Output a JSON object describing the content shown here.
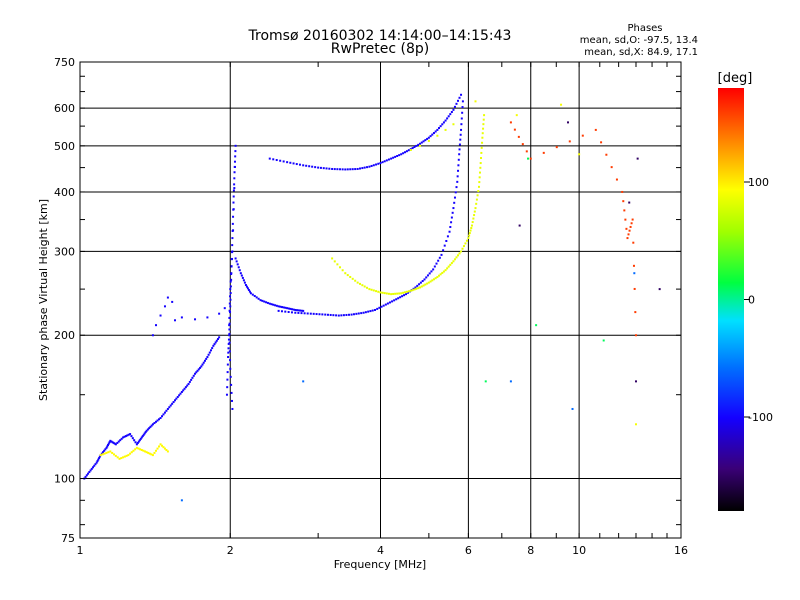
{
  "chart_data": {
    "type": "scatter",
    "title": "Tromsø 20160302 14:14:00–14:15:43",
    "subtitle": "RwPretec (8p)",
    "xlabel": "Frequency [MHz]",
    "ylabel": "Stationary phase Virtual Height [km]",
    "x_scale": "log",
    "y_scale": "log",
    "xlim": [
      1,
      16
    ],
    "ylim": [
      75,
      750
    ],
    "x_ticks": [
      1,
      2,
      4,
      6,
      8,
      10,
      16
    ],
    "y_ticks": [
      75,
      100,
      200,
      300,
      400,
      500,
      600,
      750
    ],
    "grid": true,
    "colorbar": {
      "label": "[deg]",
      "range": [
        -180,
        180
      ],
      "ticks": [
        -100,
        0,
        100
      ]
    },
    "stats": {
      "heading": "Phases",
      "o_line": "mean, sd,O: -97.5, 13.4",
      "x_line": "mean, sd,X:  84.9, 17.1"
    },
    "traces": [
      {
        "phase": -100,
        "points": [
          [
            1.02,
            100
          ],
          [
            1.05,
            104
          ],
          [
            1.08,
            108
          ],
          [
            1.1,
            112
          ],
          [
            1.13,
            116
          ],
          [
            1.15,
            120
          ],
          [
            1.18,
            118
          ],
          [
            1.22,
            122
          ],
          [
            1.26,
            124
          ],
          [
            1.3,
            118
          ],
          [
            1.33,
            122
          ],
          [
            1.36,
            126
          ],
          [
            1.4,
            130
          ],
          [
            1.45,
            134
          ],
          [
            1.5,
            140
          ],
          [
            1.55,
            146
          ],
          [
            1.6,
            152
          ],
          [
            1.65,
            158
          ],
          [
            1.7,
            166
          ],
          [
            1.75,
            172
          ],
          [
            1.8,
            180
          ],
          [
            1.85,
            190
          ],
          [
            1.9,
            198
          ]
        ]
      },
      {
        "phase": 95,
        "points": [
          [
            1.1,
            112
          ],
          [
            1.15,
            114
          ],
          [
            1.2,
            110
          ],
          [
            1.25,
            112
          ],
          [
            1.3,
            116
          ],
          [
            1.35,
            114
          ],
          [
            1.4,
            112
          ],
          [
            1.45,
            118
          ],
          [
            1.5,
            114
          ]
        ]
      },
      {
        "phase": -100,
        "points": [
          [
            1.4,
            200
          ],
          [
            1.42,
            210
          ],
          [
            1.45,
            220
          ],
          [
            1.48,
            230
          ],
          [
            1.5,
            240
          ],
          [
            1.53,
            235
          ]
        ]
      },
      {
        "phase": -100,
        "points": [
          [
            1.55,
            215
          ],
          [
            1.6,
            218
          ],
          [
            1.7,
            216
          ],
          [
            1.8,
            218
          ],
          [
            1.9,
            222
          ],
          [
            1.95,
            228
          ]
        ]
      },
      {
        "phase": -100,
        "points": [
          [
            1.97,
            150
          ],
          [
            1.98,
            180
          ],
          [
            1.99,
            200
          ],
          [
            2.0,
            230
          ],
          [
            2.01,
            270
          ],
          [
            2.02,
            320
          ],
          [
            2.03,
            380
          ],
          [
            2.04,
            440
          ],
          [
            2.05,
            500
          ],
          [
            2.02,
            300
          ],
          [
            2.0,
            250
          ],
          [
            1.99,
            210
          ],
          [
            2.0,
            170
          ],
          [
            2.02,
            140
          ]
        ]
      },
      {
        "phase": -100,
        "points": [
          [
            2.05,
            290
          ],
          [
            2.1,
            270
          ],
          [
            2.15,
            255
          ],
          [
            2.2,
            245
          ],
          [
            2.3,
            237
          ],
          [
            2.4,
            233
          ],
          [
            2.5,
            230
          ],
          [
            2.6,
            228
          ],
          [
            2.7,
            226
          ],
          [
            2.8,
            225
          ]
        ]
      },
      {
        "phase": -100,
        "points": [
          [
            2.5,
            225
          ],
          [
            2.7,
            223
          ],
          [
            2.9,
            222
          ],
          [
            3.1,
            221
          ],
          [
            3.3,
            220
          ],
          [
            3.5,
            221
          ],
          [
            3.7,
            223
          ],
          [
            3.9,
            226
          ],
          [
            4.1,
            232
          ],
          [
            4.3,
            238
          ],
          [
            4.5,
            244
          ],
          [
            4.7,
            252
          ],
          [
            4.9,
            262
          ],
          [
            5.1,
            275
          ],
          [
            5.3,
            295
          ],
          [
            5.5,
            330
          ],
          [
            5.6,
            370
          ],
          [
            5.7,
            420
          ],
          [
            5.75,
            480
          ],
          [
            5.8,
            540
          ],
          [
            5.85,
            620
          ]
        ]
      },
      {
        "phase": -100,
        "points": [
          [
            2.4,
            470
          ],
          [
            2.6,
            462
          ],
          [
            2.8,
            455
          ],
          [
            3.0,
            450
          ],
          [
            3.2,
            447
          ],
          [
            3.4,
            446
          ],
          [
            3.6,
            447
          ],
          [
            3.8,
            452
          ],
          [
            4.0,
            460
          ],
          [
            4.2,
            470
          ],
          [
            4.4,
            480
          ],
          [
            4.6,
            492
          ],
          [
            4.8,
            505
          ],
          [
            5.0,
            520
          ],
          [
            5.2,
            540
          ],
          [
            5.4,
            565
          ],
          [
            5.6,
            595
          ],
          [
            5.8,
            640
          ]
        ]
      },
      {
        "phase": 85,
        "points": [
          [
            3.2,
            290
          ],
          [
            3.4,
            270
          ],
          [
            3.6,
            258
          ],
          [
            3.8,
            250
          ],
          [
            4.0,
            246
          ],
          [
            4.2,
            244
          ],
          [
            4.4,
            245
          ],
          [
            4.6,
            248
          ],
          [
            4.8,
            252
          ],
          [
            5.0,
            258
          ],
          [
            5.2,
            265
          ],
          [
            5.4,
            274
          ],
          [
            5.6,
            286
          ],
          [
            5.8,
            300
          ],
          [
            6.0,
            320
          ],
          [
            6.1,
            340
          ],
          [
            6.2,
            370
          ],
          [
            6.3,
            410
          ],
          [
            6.35,
            460
          ],
          [
            6.4,
            520
          ],
          [
            6.45,
            580
          ]
        ]
      },
      {
        "phase": 85,
        "points": [
          [
            4.6,
            490
          ],
          [
            4.8,
            500
          ],
          [
            5.0,
            512
          ],
          [
            5.2,
            525
          ],
          [
            5.4,
            540
          ],
          [
            5.6,
            555
          ]
        ]
      },
      {
        "phase": 90,
        "points": [
          [
            6.2,
            620
          ],
          [
            7.5,
            580
          ],
          [
            9.2,
            610
          ],
          [
            10.0,
            480
          ],
          [
            13.0,
            130
          ]
        ]
      },
      {
        "phase": 160,
        "points": [
          [
            7.3,
            560
          ],
          [
            8.0,
            470
          ],
          [
            10.8,
            540
          ],
          [
            12.2,
            400
          ],
          [
            12.5,
            320
          ],
          [
            12.8,
            350
          ],
          [
            13.0,
            200
          ]
        ]
      },
      {
        "phase": -150,
        "points": [
          [
            7.6,
            340
          ],
          [
            9.5,
            560
          ],
          [
            12.6,
            380
          ],
          [
            13.1,
            470
          ],
          [
            14.5,
            250
          ],
          [
            13.0,
            160
          ]
        ]
      },
      {
        "phase": 10,
        "points": [
          [
            7.9,
            470
          ],
          [
            6.5,
            160
          ],
          [
            8.2,
            210
          ],
          [
            11.2,
            195
          ]
        ]
      },
      {
        "phase": -60,
        "points": [
          [
            2.8,
            160
          ],
          [
            7.3,
            160
          ],
          [
            9.7,
            140
          ],
          [
            12.9,
            270
          ],
          [
            1.6,
            90
          ]
        ]
      }
    ]
  }
}
